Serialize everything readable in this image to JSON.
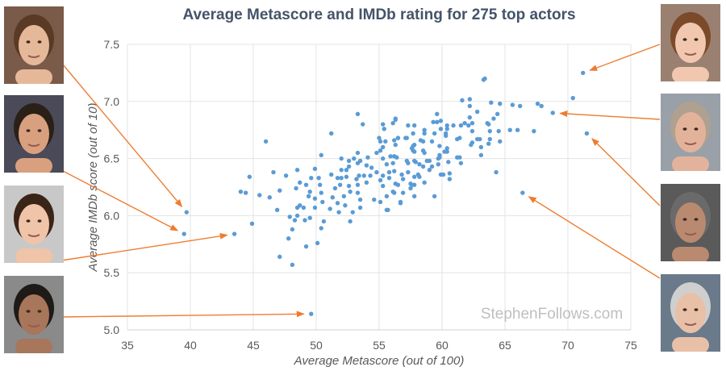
{
  "chart_data": {
    "type": "scatter",
    "title": "Average Metascore and IMDb rating for 275 top actors",
    "xlabel": "Average Metascore (out of 100)",
    "ylabel": "Average IMDb score (out of 10)",
    "xlim": [
      35,
      75
    ],
    "ylim": [
      5.0,
      7.5
    ],
    "xticks": [
      "35",
      "40",
      "45",
      "50",
      "55",
      "60",
      "65",
      "70",
      "75"
    ],
    "yticks": [
      "5.0",
      "5.5",
      "6.0",
      "6.5",
      "7.0",
      "7.5"
    ],
    "grid": true,
    "point_color": "#5b9bd5",
    "arrow_color": "#ed7d31",
    "watermark": "StephenFollows.com",
    "highlighted": [
      [
        39.7,
        6.03
      ],
      [
        39.5,
        5.84
      ],
      [
        43.5,
        5.84
      ],
      [
        49.6,
        5.14
      ],
      [
        71.2,
        7.25
      ],
      [
        68.8,
        6.9
      ],
      [
        71.5,
        6.72
      ],
      [
        66.4,
        6.2
      ]
    ],
    "points": [
      [
        39.7,
        6.03
      ],
      [
        39.5,
        5.84
      ],
      [
        43.5,
        5.84
      ],
      [
        49.6,
        5.14
      ],
      [
        71.2,
        7.25
      ],
      [
        68.8,
        6.9
      ],
      [
        71.5,
        6.72
      ],
      [
        66.4,
        6.2
      ],
      [
        70.4,
        7.03
      ],
      [
        53.3,
        6.89
      ],
      [
        53.7,
        6.8
      ],
      [
        51.2,
        6.72
      ],
      [
        46.0,
        6.65
      ],
      [
        50.4,
        6.53
      ],
      [
        44.7,
        6.34
      ],
      [
        46.6,
        6.38
      ],
      [
        47.6,
        6.35
      ],
      [
        48.5,
        6.4
      ],
      [
        44.0,
        6.21
      ],
      [
        44.4,
        6.2
      ],
      [
        45.5,
        6.18
      ],
      [
        46.3,
        6.16
      ],
      [
        47.1,
        6.22
      ],
      [
        46.9,
        6.05
      ],
      [
        44.9,
        5.93
      ],
      [
        47.8,
        5.8
      ],
      [
        47.1,
        5.64
      ],
      [
        48.1,
        5.57
      ],
      [
        49.2,
        5.73
      ],
      [
        50.1,
        5.76
      ],
      [
        48.1,
        5.88
      ],
      [
        50.4,
        5.89
      ],
      [
        50.6,
        5.95
      ],
      [
        47.9,
        5.99
      ],
      [
        48.3,
        5.96
      ],
      [
        48.5,
        6.0
      ],
      [
        49.1,
        5.96
      ],
      [
        49.5,
        5.98
      ],
      [
        48.5,
        6.07
      ],
      [
        48.7,
        6.09
      ],
      [
        49.0,
        6.07
      ],
      [
        48.4,
        6.24
      ],
      [
        48.7,
        6.29
      ],
      [
        49.2,
        6.27
      ],
      [
        49.5,
        6.21
      ],
      [
        49.4,
        6.17
      ],
      [
        49.9,
        6.15
      ],
      [
        49.9,
        6.07
      ],
      [
        49.6,
        6.33
      ],
      [
        49.9,
        6.41
      ],
      [
        50.2,
        6.33
      ],
      [
        50.3,
        6.27
      ],
      [
        50.4,
        6.2
      ],
      [
        50.5,
        6.12
      ],
      [
        51.1,
        6.06
      ],
      [
        51.3,
        6.16
      ],
      [
        51.8,
        6.03
      ],
      [
        51.7,
        6.11
      ],
      [
        52.3,
        6.09
      ],
      [
        52.7,
        5.95
      ],
      [
        52.9,
        6.03
      ],
      [
        53.5,
        6.07
      ],
      [
        53.5,
        6.14
      ],
      [
        52.2,
        6.17
      ],
      [
        52.7,
        6.21
      ],
      [
        51.5,
        6.24
      ],
      [
        51.9,
        6.27
      ],
      [
        52.6,
        6.26
      ],
      [
        53.3,
        6.27
      ],
      [
        53.3,
        6.2
      ],
      [
        51.2,
        6.36
      ],
      [
        51.7,
        6.33
      ],
      [
        52.0,
        6.33
      ],
      [
        52.4,
        6.34
      ],
      [
        52.0,
        6.4
      ],
      [
        52.4,
        6.4
      ],
      [
        52.6,
        6.43
      ],
      [
        52.0,
        6.5
      ],
      [
        52.6,
        6.48
      ],
      [
        53.0,
        6.5
      ],
      [
        53.3,
        6.55
      ],
      [
        53.3,
        6.46
      ],
      [
        53.5,
        6.48
      ],
      [
        53.4,
        6.35
      ],
      [
        53.8,
        6.35
      ],
      [
        53.2,
        6.32
      ],
      [
        54.0,
        6.44
      ],
      [
        54.1,
        6.51
      ],
      [
        54.0,
        6.29
      ],
      [
        54.4,
        6.42
      ],
      [
        54.3,
        6.35
      ],
      [
        54.8,
        6.38
      ],
      [
        54.6,
        6.14
      ],
      [
        55.1,
        6.12
      ],
      [
        55.6,
        6.05
      ],
      [
        55.6,
        6.17
      ],
      [
        55.3,
        6.26
      ],
      [
        55.1,
        6.31
      ],
      [
        55.3,
        6.35
      ],
      [
        55.8,
        6.33
      ],
      [
        56.1,
        6.21
      ],
      [
        56.3,
        6.28
      ],
      [
        56.7,
        6.11
      ],
      [
        54.8,
        6.55
      ],
      [
        55.1,
        6.57
      ],
      [
        55.3,
        6.6
      ],
      [
        55.3,
        6.5
      ],
      [
        55.6,
        6.45
      ],
      [
        55.9,
        6.52
      ],
      [
        56.1,
        6.46
      ],
      [
        56.2,
        6.52
      ],
      [
        55.0,
        6.68
      ],
      [
        55.1,
        6.65
      ],
      [
        55.5,
        6.65
      ],
      [
        56.2,
        6.66
      ],
      [
        56.5,
        6.68
      ],
      [
        55.3,
        6.8
      ],
      [
        55.4,
        6.76
      ],
      [
        56.1,
        6.81
      ],
      [
        56.3,
        6.84
      ],
      [
        63.4,
        7.2
      ],
      [
        63.3,
        7.19
      ],
      [
        61.6,
        7.01
      ],
      [
        62.2,
        7.02
      ],
      [
        62.2,
        6.96
      ],
      [
        63.9,
        6.99
      ],
      [
        64.6,
        6.98
      ],
      [
        65.6,
        6.97
      ],
      [
        66.2,
        6.96
      ],
      [
        67.6,
        6.98
      ],
      [
        67.9,
        6.96
      ],
      [
        62.8,
        6.91
      ],
      [
        64.4,
        6.89
      ],
      [
        64.1,
        6.85
      ],
      [
        62.2,
        6.86
      ],
      [
        59.6,
        6.89
      ],
      [
        56.3,
        6.85
      ],
      [
        59.3,
        6.82
      ],
      [
        59.6,
        6.82
      ],
      [
        59.9,
        6.83
      ],
      [
        60.4,
        6.79
      ],
      [
        60.4,
        6.76
      ],
      [
        60.9,
        6.79
      ],
      [
        61.5,
        6.79
      ],
      [
        61.8,
        6.81
      ],
      [
        62.1,
        6.79
      ],
      [
        62.4,
        6.81
      ],
      [
        63.6,
        6.81
      ],
      [
        63.7,
        6.8
      ],
      [
        57.3,
        6.79
      ],
      [
        57.8,
        6.79
      ],
      [
        58.6,
        6.75
      ],
      [
        59.9,
        6.76
      ],
      [
        62.4,
        6.74
      ],
      [
        63.8,
        6.74
      ],
      [
        64.5,
        6.74
      ],
      [
        65.4,
        6.75
      ],
      [
        66.0,
        6.75
      ],
      [
        67.3,
        6.74
      ],
      [
        56.5,
        6.68
      ],
      [
        57.1,
        6.68
      ],
      [
        57.2,
        6.68
      ],
      [
        57.7,
        6.72
      ],
      [
        58.6,
        6.72
      ],
      [
        59.4,
        6.72
      ],
      [
        60.3,
        6.72
      ],
      [
        60.3,
        6.7
      ],
      [
        61.2,
        6.67
      ],
      [
        61.4,
        6.68
      ],
      [
        62.8,
        6.67
      ],
      [
        63.0,
        6.67
      ],
      [
        63.8,
        6.67
      ],
      [
        64.6,
        6.65
      ],
      [
        63.7,
        6.63
      ],
      [
        62.3,
        6.62
      ],
      [
        62.4,
        6.64
      ],
      [
        63.1,
        6.6
      ],
      [
        63.1,
        6.53
      ],
      [
        58.3,
        6.66
      ],
      [
        58.5,
        6.65
      ],
      [
        57.8,
        6.62
      ],
      [
        57.7,
        6.61
      ],
      [
        57.6,
        6.59
      ],
      [
        57.7,
        6.57
      ],
      [
        56.3,
        6.62
      ],
      [
        59.2,
        6.65
      ],
      [
        59.8,
        6.61
      ],
      [
        60.4,
        6.59
      ],
      [
        60.4,
        6.56
      ],
      [
        60.2,
        6.56
      ],
      [
        58.5,
        6.57
      ],
      [
        58.6,
        6.55
      ],
      [
        57.8,
        6.56
      ],
      [
        59.8,
        6.53
      ],
      [
        59.8,
        6.51
      ],
      [
        59.7,
        6.5
      ],
      [
        61.2,
        6.51
      ],
      [
        61.4,
        6.51
      ],
      [
        60.5,
        6.47
      ],
      [
        61.5,
        6.46
      ],
      [
        56.4,
        6.51
      ],
      [
        56.2,
        6.52
      ],
      [
        57.2,
        6.48
      ],
      [
        57.3,
        6.46
      ],
      [
        57.8,
        6.48
      ],
      [
        57.9,
        6.47
      ],
      [
        58.2,
        6.45
      ],
      [
        58.5,
        6.43
      ],
      [
        58.8,
        6.48
      ],
      [
        59.0,
        6.48
      ],
      [
        59.0,
        6.4
      ],
      [
        59.2,
        6.43
      ],
      [
        59.7,
        6.45
      ],
      [
        59.9,
        6.36
      ],
      [
        60.1,
        6.36
      ],
      [
        60.6,
        6.37
      ],
      [
        60.6,
        6.32
      ],
      [
        64.3,
        6.38
      ],
      [
        55.8,
        6.38
      ],
      [
        56.2,
        6.39
      ],
      [
        56.8,
        6.36
      ],
      [
        57.3,
        6.38
      ],
      [
        57.8,
        6.34
      ],
      [
        58.1,
        6.36
      ],
      [
        58.2,
        6.34
      ],
      [
        56.9,
        6.32
      ],
      [
        56.5,
        6.27
      ],
      [
        57.6,
        6.27
      ],
      [
        57.5,
        6.28
      ],
      [
        57.8,
        6.27
      ],
      [
        57.5,
        6.24
      ],
      [
        56.9,
        6.2
      ],
      [
        56.2,
        6.2
      ],
      [
        57.8,
        6.17
      ],
      [
        58.6,
        6.29
      ],
      [
        59.4,
        6.17
      ],
      [
        56.7,
        6.12
      ],
      [
        55.7,
        6.05
      ]
    ]
  },
  "photos": {
    "left": [
      "actor-photo-1",
      "actor-photo-2",
      "actor-photo-3",
      "actor-photo-4"
    ],
    "right": [
      "actor-photo-5",
      "actor-photo-6",
      "actor-photo-7",
      "actor-photo-8"
    ]
  }
}
